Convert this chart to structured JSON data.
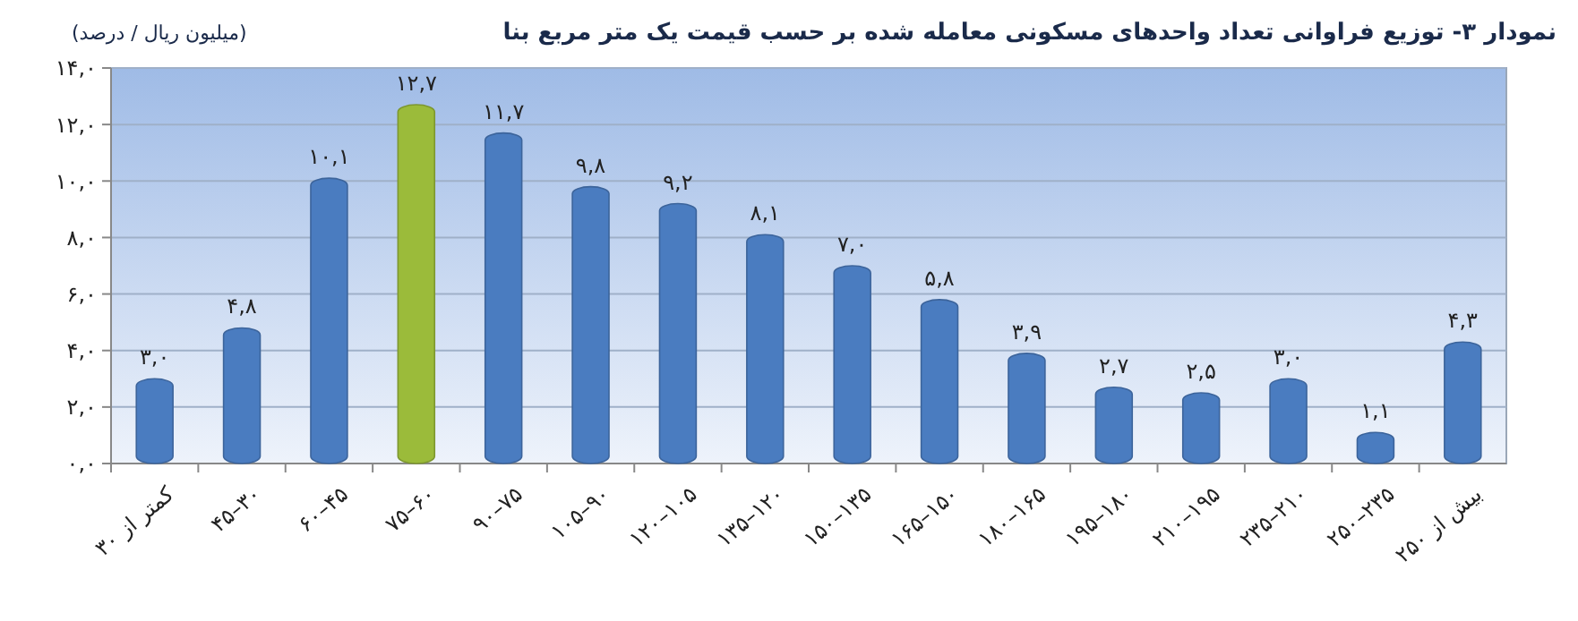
{
  "chart_data": {
    "type": "bar",
    "title": "نمودار ۳- توزیع فراوانی تعداد واحدهای مسکونی معامله شده بر حسب قیمت یک متر مربع بنا",
    "subtitle": "(میلیون ریال / درصد)",
    "categories": [
      "کمتر از ۳۰",
      "۳۰–۴۵",
      "۴۵–۶۰",
      "۶۰–۷۵",
      "۷۵–۹۰",
      "۹۰–۱۰۵",
      "۱۰۵–۱۲۰",
      "۱۲۰–۱۳۵",
      "۱۳۵–۱۵۰",
      "۱۵۰–۱۶۵",
      "۱۶۵–۱۸۰",
      "۱۸۰–۱۹۵",
      "۱۹۵–۲۱۰",
      "۲۱۰–۲۳۵",
      "۲۳۵–۲۵۰",
      "بیش از ۲۵۰"
    ],
    "values": [
      3.0,
      4.8,
      10.1,
      12.7,
      11.7,
      9.8,
      9.2,
      8.1,
      7.0,
      5.8,
      3.9,
      2.7,
      2.5,
      3.0,
      1.1,
      4.3
    ],
    "value_labels": [
      "۳,۰",
      "۴,۸",
      "۱۰,۱",
      "۱۲,۷",
      "۱۱,۷",
      "۹,۸",
      "۹,۲",
      "۸,۱",
      "۷,۰",
      "۵,۸",
      "۳,۹",
      "۲,۷",
      "۲,۵",
      "۳,۰",
      "۱,۱",
      "۴,۳"
    ],
    "colors": [
      "#4a7cc0",
      "#4a7cc0",
      "#4a7cc0",
      "#9bbb3a",
      "#4a7cc0",
      "#4a7cc0",
      "#4a7cc0",
      "#4a7cc0",
      "#4a7cc0",
      "#4a7cc0",
      "#4a7cc0",
      "#4a7cc0",
      "#4a7cc0",
      "#4a7cc0",
      "#4a7cc0",
      "#4a7cc0"
    ],
    "ylim": [
      0,
      14
    ],
    "yticks": [
      {
        "value": 0,
        "label": "۰,۰"
      },
      {
        "value": 2,
        "label": "۲,۰"
      },
      {
        "value": 4,
        "label": "۴,۰"
      },
      {
        "value": 6,
        "label": "۶,۰"
      },
      {
        "value": 8,
        "label": "۸,۰"
      },
      {
        "value": 10,
        "label": "۱۰,۰"
      },
      {
        "value": 12,
        "label": "۱۲,۰"
      },
      {
        "value": 14,
        "label": "۱۴,۰"
      }
    ],
    "grid": true
  }
}
